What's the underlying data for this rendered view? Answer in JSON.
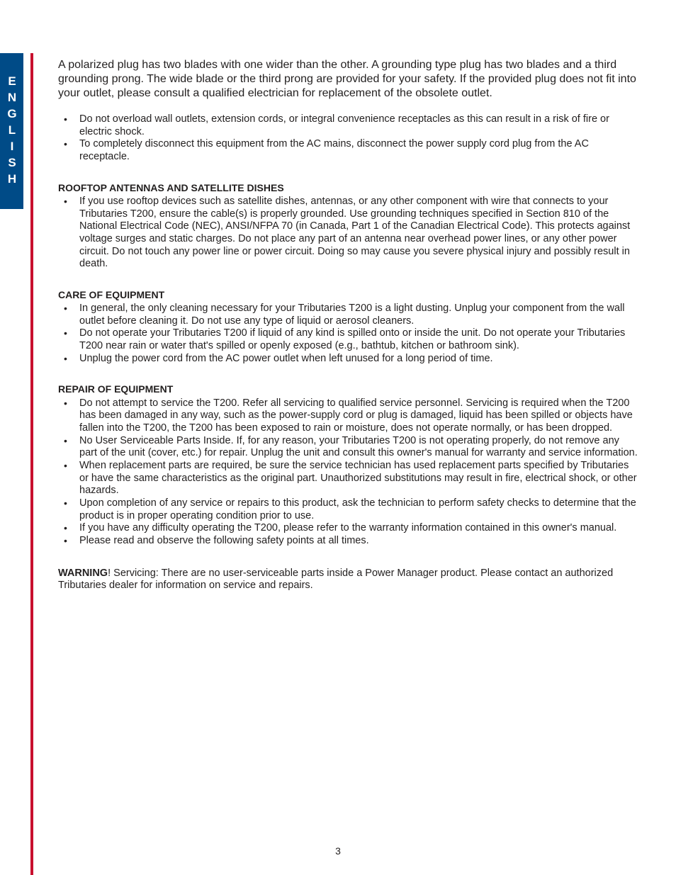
{
  "tab": {
    "label": "ENGLISH",
    "bg_color": "#004b87",
    "text_color": "#ffffff"
  },
  "accent_bar_color": "#c8102e",
  "intro_paragraph": "A polarized plug has two blades with one wider than the other. A grounding type plug has two blades and a third grounding prong. The wide blade or the third prong are provided for your safety. If the provided plug does not fit into your outlet, please consult a qualified electrician for replacement of the obsolete outlet.",
  "top_bullets": [
    "Do not overload wall outlets, extension cords, or integral convenience receptacles as this can result in a risk of fire or electric shock.",
    "To completely disconnect this equipment from the AC mains, disconnect the power supply cord plug from the AC receptacle."
  ],
  "sections": [
    {
      "heading": "ROOFTOP ANTENNAS AND SATELLITE DISHES",
      "bullets": [
        "If you use rooftop devices such as satellite dishes, antennas, or any other component with wire that connects to your Tributaries T200, ensure the cable(s) is properly grounded. Use grounding techniques specified in Section 810 of the National Electrical Code (NEC), ANSI/NFPA 70 (in Canada, Part 1 of the Canadian Electrical Code). This protects against voltage surges and static charges. Do not place any part of an antenna near overhead power lines, or any other power circuit. Do not touch any power line or power circuit. Doing so may cause you severe physical injury and possibly result in death."
      ]
    },
    {
      "heading": "CARE OF EQUIPMENT",
      "bullets": [
        "In general, the only cleaning necessary for your Tributaries T200 is a light dusting. Unplug your component from the wall outlet before cleaning it. Do not use any type of liquid or aerosol cleaners.",
        "Do not operate your Tributaries T200 if liquid of any kind is spilled onto or inside the unit. Do not operate your Tributaries T200 near rain or water that's spilled or openly exposed (e.g., bathtub, kitchen or bathroom sink).",
        "Unplug the power cord from the AC power outlet when left unused for a long period of time."
      ]
    },
    {
      "heading": "REPAIR OF EQUIPMENT",
      "bullets": [
        "Do not attempt to service the T200. Refer all servicing to qualified service personnel. Servicing is required when the T200 has been damaged in any way, such as the power-supply cord or plug is damaged, liquid has been spilled or objects have fallen into the T200, the T200 has been exposed to rain or moisture, does not operate normally, or has been dropped.",
        "No User Serviceable Parts Inside. If, for any reason, your Tributaries T200 is not operating properly, do not remove any part of the unit (cover, etc.) for repair. Unplug the unit and consult this owner's manual for warranty and service information.",
        "When replacement parts are required, be sure the service technician has used replacement parts specified by Tributaries or have the same characteristics as the original part. Unauthorized substitutions may result in fire, electrical shock, or other hazards.",
        "Upon completion of any service or repairs to this product, ask the technician to perform safety checks to determine that the product is in proper operating condition prior to use.",
        "If you have any difficulty operating the T200, please refer to the warranty information contained in this owner's manual.",
        "Please read and observe the following safety points at all times."
      ]
    }
  ],
  "warning": {
    "label": "WARNING",
    "text": "! Servicing: There are no user-serviceable parts inside a Power Manager product. Please contact an authorized Tributaries dealer for information on service and repairs."
  },
  "page_number": "3"
}
